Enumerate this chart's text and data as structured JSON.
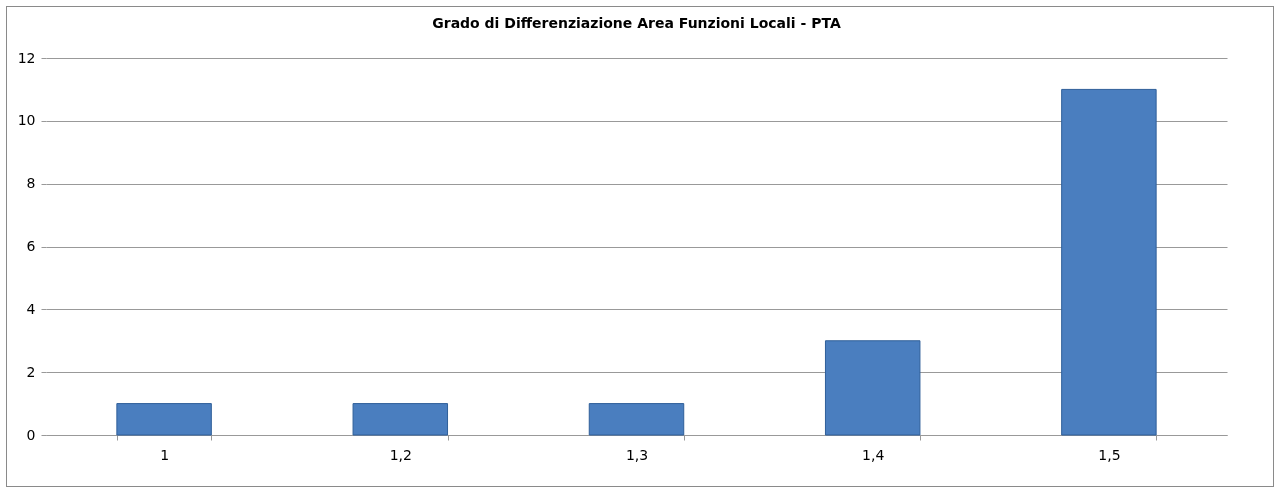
{
  "chart_data": {
    "type": "bar",
    "title": "Grado di Differenziazione Area  Funzioni Locali - PTA",
    "categories": [
      "1",
      "1,2",
      "1,3",
      "1,4",
      "1,5"
    ],
    "values": [
      1,
      1,
      1,
      3,
      11
    ],
    "color": "#4a7ebf",
    "ylim": [
      0,
      12
    ],
    "yticks": [
      0,
      2,
      4,
      6,
      8,
      10,
      12
    ],
    "grid": "y"
  }
}
